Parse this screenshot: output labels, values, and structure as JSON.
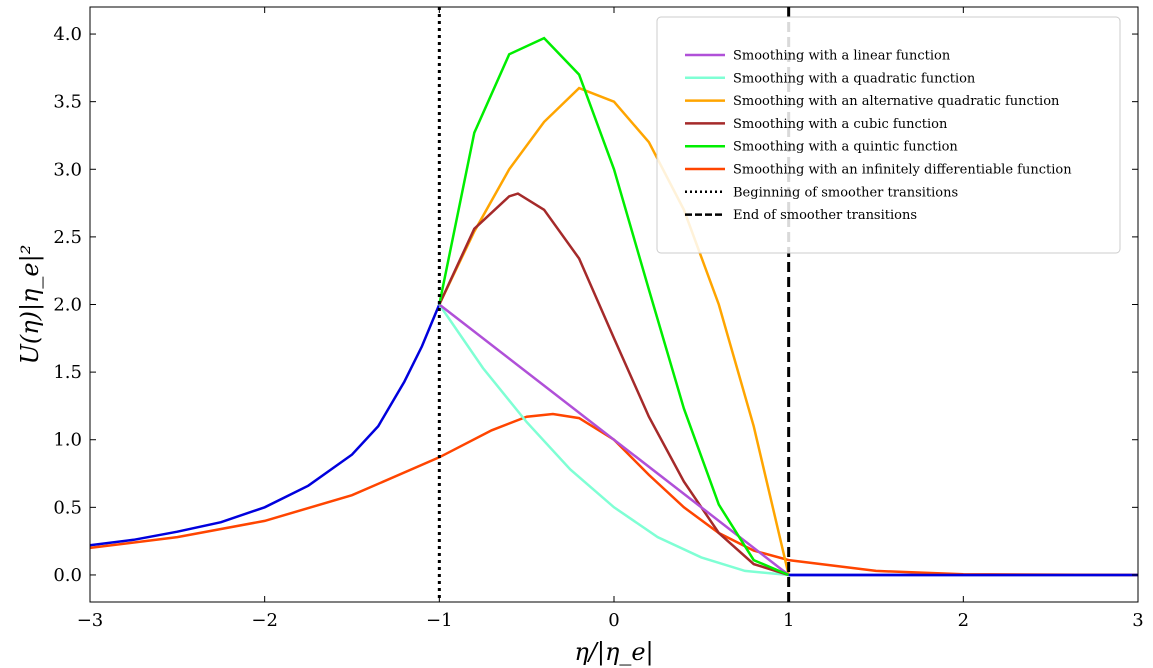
{
  "chart_data": {
    "type": "line",
    "title": "",
    "xlabel": "η/|η_e|",
    "ylabel": "U(η)|η_e|²",
    "xlim": [
      -3,
      3
    ],
    "ylim": [
      -0.2,
      4.2
    ],
    "x_ticks": [
      -3,
      -2,
      -1,
      0,
      1,
      2,
      3
    ],
    "x_tick_labels": [
      "−3",
      "−2",
      "−1",
      "0",
      "1",
      "2",
      "3"
    ],
    "y_ticks": [
      0.0,
      0.5,
      1.0,
      1.5,
      2.0,
      2.5,
      3.0,
      3.5,
      4.0
    ],
    "y_tick_labels": [
      "0.0",
      "0.5",
      "1.0",
      "1.5",
      "2.0",
      "2.5",
      "3.0",
      "3.5",
      "4.0"
    ],
    "grid": false,
    "legend_position": "top-right",
    "series": [
      {
        "key": "base",
        "name": "",
        "color": "#0000dd",
        "points": [
          [
            -3.0,
            0.22
          ],
          [
            -2.75,
            0.26
          ],
          [
            -2.5,
            0.32
          ],
          [
            -2.25,
            0.39
          ],
          [
            -2.0,
            0.5
          ],
          [
            -1.75,
            0.66
          ],
          [
            -1.5,
            0.89
          ],
          [
            -1.35,
            1.1
          ],
          [
            -1.2,
            1.43
          ],
          [
            -1.1,
            1.69
          ],
          [
            -1.0,
            2.0
          ]
        ],
        "points2": [
          [
            1.0,
            0.0
          ],
          [
            3.0,
            0.0
          ]
        ]
      },
      {
        "key": "linear",
        "name": "Smoothing with a linear function",
        "color": "#b050d8",
        "points": [
          [
            -1.0,
            2.0
          ],
          [
            1.0,
            0.0
          ]
        ]
      },
      {
        "key": "quadratic",
        "name": "Smoothing with a quadratic function",
        "color": "#7fffd4",
        "points": [
          [
            -1.0,
            2.0
          ],
          [
            -0.75,
            1.53
          ],
          [
            -0.5,
            1.13
          ],
          [
            -0.25,
            0.78
          ],
          [
            0.0,
            0.5
          ],
          [
            0.25,
            0.28
          ],
          [
            0.5,
            0.13
          ],
          [
            0.75,
            0.03
          ],
          [
            1.0,
            0.0
          ]
        ]
      },
      {
        "key": "alt_quadratic",
        "name": "Smoothing with an alternative quadratic function",
        "color": "#ffa500",
        "points": [
          [
            -1.0,
            2.0
          ],
          [
            -0.8,
            2.54
          ],
          [
            -0.6,
            3.0
          ],
          [
            -0.4,
            3.35
          ],
          [
            -0.2,
            3.6
          ],
          [
            0.0,
            3.5
          ],
          [
            0.2,
            3.2
          ],
          [
            0.4,
            2.7
          ],
          [
            0.6,
            2.0
          ],
          [
            0.8,
            1.1
          ],
          [
            1.0,
            0.0
          ]
        ]
      },
      {
        "key": "cubic",
        "name": "Smoothing with a cubic function",
        "color": "#a52a2a",
        "points": [
          [
            -1.0,
            2.0
          ],
          [
            -0.8,
            2.56
          ],
          [
            -0.6,
            2.8
          ],
          [
            -0.55,
            2.82
          ],
          [
            -0.4,
            2.7
          ],
          [
            -0.2,
            2.34
          ],
          [
            0.0,
            1.75
          ],
          [
            0.2,
            1.17
          ],
          [
            0.4,
            0.69
          ],
          [
            0.6,
            0.31
          ],
          [
            0.8,
            0.08
          ],
          [
            1.0,
            0.0
          ]
        ]
      },
      {
        "key": "quintic",
        "name": "Smoothing with a quintic function",
        "color": "#00ee00",
        "points": [
          [
            -1.0,
            2.0
          ],
          [
            -0.8,
            3.27
          ],
          [
            -0.6,
            3.85
          ],
          [
            -0.4,
            3.97
          ],
          [
            -0.2,
            3.7
          ],
          [
            0.0,
            3.0
          ],
          [
            0.2,
            2.11
          ],
          [
            0.4,
            1.23
          ],
          [
            0.6,
            0.52
          ],
          [
            0.8,
            0.11
          ],
          [
            1.0,
            0.0
          ]
        ]
      },
      {
        "key": "infinite",
        "name": "Smoothing with an infinitely differentiable function",
        "color": "#ff4500",
        "points": [
          [
            -3.0,
            0.2
          ],
          [
            -2.5,
            0.28
          ],
          [
            -2.0,
            0.4
          ],
          [
            -1.5,
            0.59
          ],
          [
            -1.0,
            0.87
          ],
          [
            -0.7,
            1.07
          ],
          [
            -0.5,
            1.17
          ],
          [
            -0.35,
            1.19
          ],
          [
            -0.2,
            1.16
          ],
          [
            0.0,
            1.0
          ],
          [
            0.2,
            0.74
          ],
          [
            0.4,
            0.5
          ],
          [
            0.6,
            0.31
          ],
          [
            0.8,
            0.18
          ],
          [
            1.0,
            0.11
          ],
          [
            1.5,
            0.03
          ],
          [
            2.0,
            0.005
          ],
          [
            3.0,
            0.0
          ]
        ]
      }
    ],
    "vertical_lines": [
      {
        "key": "begin",
        "x": -1,
        "name": "Beginning of smoother transitions",
        "style": "dotted",
        "color": "#000000"
      },
      {
        "key": "end",
        "x": 1,
        "name": "End of smoother transitions",
        "style": "dashed",
        "color": "#000000"
      }
    ]
  }
}
